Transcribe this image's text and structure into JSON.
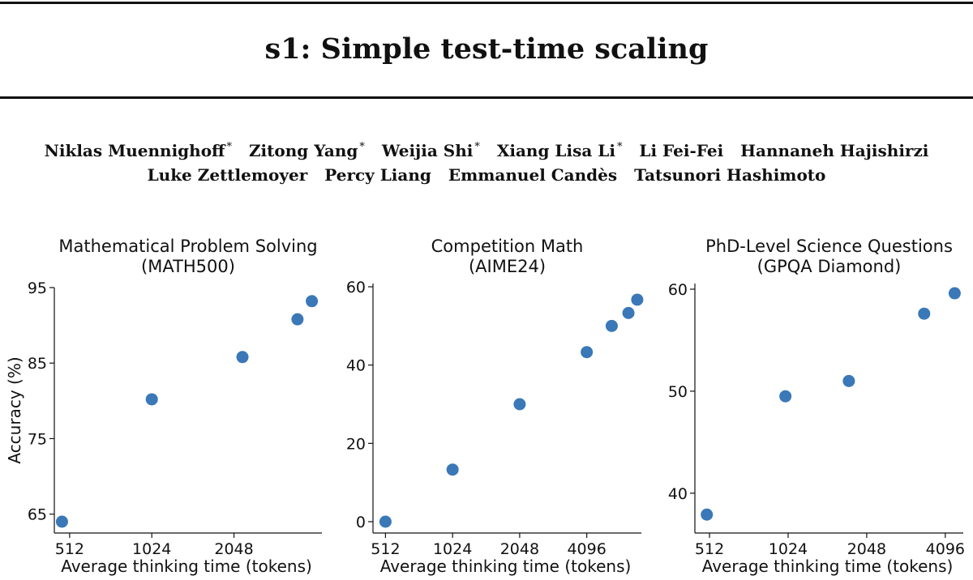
{
  "paper": {
    "title": "s1: Simple test-time scaling",
    "authors_line1": [
      {
        "name": "Niklas Muennighoff",
        "mark": "*"
      },
      {
        "name": "Zitong Yang",
        "mark": "*"
      },
      {
        "name": "Weijia Shi",
        "mark": "*"
      },
      {
        "name": "Xiang Lisa Li",
        "mark": "*"
      },
      {
        "name": "Li Fei-Fei",
        "mark": ""
      },
      {
        "name": "Hannaneh Hajishirzi",
        "mark": ""
      }
    ],
    "authors_line2": [
      {
        "name": "Luke Zettlemoyer",
        "mark": ""
      },
      {
        "name": "Percy Liang",
        "mark": ""
      },
      {
        "name": "Emmanuel Candès",
        "mark": ""
      },
      {
        "name": "Tatsunori Hashimoto",
        "mark": ""
      }
    ]
  },
  "chart_data": [
    {
      "type": "scatter",
      "title": "Mathematical Problem Solving",
      "subtitle": "(MATH500)",
      "xlabel": "Average thinking time (tokens)",
      "ylabel": "Accuracy (%)",
      "x_scale": "log2",
      "x_ticks": [
        512,
        1024,
        2048
      ],
      "xlim": [
        450,
        4300
      ],
      "y_ticks": [
        65,
        75,
        85,
        95
      ],
      "ylim": [
        64,
        95
      ],
      "color": "#3a78b7",
      "points": [
        {
          "x": 480,
          "y": 64.0
        },
        {
          "x": 1024,
          "y": 80.2
        },
        {
          "x": 2200,
          "y": 85.8
        },
        {
          "x": 3500,
          "y": 90.8
        },
        {
          "x": 3950,
          "y": 93.2
        }
      ]
    },
    {
      "type": "scatter",
      "title": "Competition Math",
      "subtitle": "(AIME24)",
      "xlabel": "Average thinking time (tokens)",
      "ylabel": "",
      "x_scale": "log2",
      "x_ticks": [
        512,
        1024,
        2048,
        4096
      ],
      "xlim": [
        450,
        7200
      ],
      "y_ticks": [
        0,
        20,
        40,
        60
      ],
      "ylim": [
        0,
        60
      ],
      "color": "#3a78b7",
      "points": [
        {
          "x": 512,
          "y": 0.0
        },
        {
          "x": 1024,
          "y": 13.3
        },
        {
          "x": 2048,
          "y": 30.0
        },
        {
          "x": 4096,
          "y": 43.3
        },
        {
          "x": 5300,
          "y": 50.0
        },
        {
          "x": 6300,
          "y": 53.3
        },
        {
          "x": 6900,
          "y": 56.7
        }
      ]
    },
    {
      "type": "scatter",
      "title": "PhD-Level Science Questions",
      "subtitle": "(GPQA Diamond)",
      "xlabel": "Average thinking time (tokens)",
      "ylabel": "",
      "x_scale": "log2",
      "x_ticks": [
        512,
        1024,
        2048,
        4096
      ],
      "xlim": [
        450,
        4800
      ],
      "y_ticks": [
        40,
        50,
        60
      ],
      "ylim": [
        38,
        60
      ],
      "color": "#3a78b7",
      "points": [
        {
          "x": 500,
          "y": 37.9
        },
        {
          "x": 1000,
          "y": 49.5
        },
        {
          "x": 1750,
          "y": 51.0
        },
        {
          "x": 3400,
          "y": 57.6
        },
        {
          "x": 4450,
          "y": 59.6
        }
      ]
    }
  ]
}
